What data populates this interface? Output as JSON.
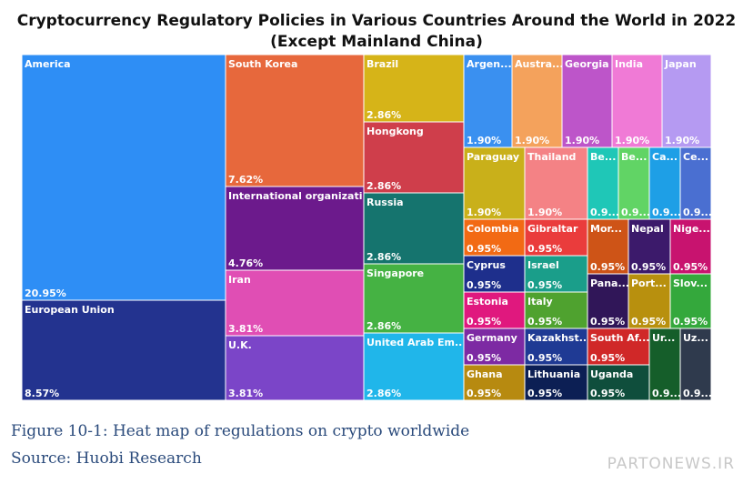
{
  "chart_data": {
    "type": "treemap",
    "title": "Cryptocurrency Regulatory Policies in Various Countries Around the World in 2022",
    "subtitle": "(Except Mainland China)",
    "items": [
      {
        "label": "America",
        "value_label": "20.95%",
        "value": 20.95,
        "color": "#2e8ef5"
      },
      {
        "label": "European Union",
        "value_label": "8.57%",
        "value": 8.57,
        "color": "#23338f"
      },
      {
        "label": "South Korea",
        "value_label": "7.62%",
        "value": 7.62,
        "color": "#e7683c"
      },
      {
        "label": "International organizati...",
        "value_label": "4.76%",
        "value": 4.76,
        "color": "#6c1a8c"
      },
      {
        "label": "Iran",
        "value_label": "3.81%",
        "value": 3.81,
        "color": "#e04eb4"
      },
      {
        "label": "U.K.",
        "value_label": "3.81%",
        "value": 3.81,
        "color": "#7b45c8"
      },
      {
        "label": "Brazil",
        "value_label": "2.86%",
        "value": 2.86,
        "color": "#d6b418"
      },
      {
        "label": "Hongkong",
        "value_label": "2.86%",
        "value": 2.86,
        "color": "#cf3e4b"
      },
      {
        "label": "Russia",
        "value_label": "2.86%",
        "value": 2.86,
        "color": "#15746e"
      },
      {
        "label": "Singapore",
        "value_label": "2.86%",
        "value": 2.86,
        "color": "#45b243"
      },
      {
        "label": "United Arab Em...",
        "value_label": "2.86%",
        "value": 2.86,
        "color": "#20b6ea"
      },
      {
        "label": "Argen...",
        "value_label": "1.90%",
        "value": 1.9,
        "color": "#3a90f0"
      },
      {
        "label": "Austra...",
        "value_label": "1.90%",
        "value": 1.9,
        "color": "#f4a25c"
      },
      {
        "label": "Georgia",
        "value_label": "1.90%",
        "value": 1.9,
        "color": "#bd55c9"
      },
      {
        "label": "India",
        "value_label": "1.90%",
        "value": 1.9,
        "color": "#f07ad6"
      },
      {
        "label": "Japan",
        "value_label": "1.90%",
        "value": 1.9,
        "color": "#b59af2"
      },
      {
        "label": "Paraguay",
        "value_label": "1.90%",
        "value": 1.9,
        "color": "#c9b01a"
      },
      {
        "label": "Thailand",
        "value_label": "1.90%",
        "value": 1.9,
        "color": "#f48285"
      },
      {
        "label": "Be...",
        "value_label": "0.9...",
        "value": 0.95,
        "color": "#1fc7b7"
      },
      {
        "label": "Be...",
        "value_label": "0.9...",
        "value": 0.95,
        "color": "#61d465"
      },
      {
        "label": "Ca...",
        "value_label": "0.9...",
        "value": 0.95,
        "color": "#1e9fe6"
      },
      {
        "label": "Ce...",
        "value_label": "0.9...",
        "value": 0.95,
        "color": "#4a6fd1"
      },
      {
        "label": "Colombia",
        "value_label": "0.95%",
        "value": 0.95,
        "color": "#f26a14"
      },
      {
        "label": "Gibraltar",
        "value_label": "0.95%",
        "value": 0.95,
        "color": "#ea3c3c"
      },
      {
        "label": "Mor...",
        "value_label": "0.95%",
        "value": 0.95,
        "color": "#ce5417"
      },
      {
        "label": "Nepal",
        "value_label": "0.95%",
        "value": 0.95,
        "color": "#3c1a6b"
      },
      {
        "label": "Nige...",
        "value_label": "0.95%",
        "value": 0.95,
        "color": "#c8136f"
      },
      {
        "label": "Cyprus",
        "value_label": "0.95%",
        "value": 0.95,
        "color": "#1e2f8c"
      },
      {
        "label": "Israel",
        "value_label": "0.95%",
        "value": 0.95,
        "color": "#1a9e8a"
      },
      {
        "label": "Pana...",
        "value_label": "0.95%",
        "value": 0.95,
        "color": "#301658"
      },
      {
        "label": "Port...",
        "value_label": "0.95%",
        "value": 0.95,
        "color": "#b8900e"
      },
      {
        "label": "Slov...",
        "value_label": "0.95%",
        "value": 0.95,
        "color": "#34a83c"
      },
      {
        "label": "Estonia",
        "value_label": "0.95%",
        "value": 0.95,
        "color": "#e0187e"
      },
      {
        "label": "Italy",
        "value_label": "0.95%",
        "value": 0.95,
        "color": "#4fa22f"
      },
      {
        "label": "Germany",
        "value_label": "0.95%",
        "value": 0.95,
        "color": "#7d2aa3"
      },
      {
        "label": "Kazakhst...",
        "value_label": "0.95%",
        "value": 0.95,
        "color": "#1f3a94"
      },
      {
        "label": "South Af...",
        "value_label": "0.95%",
        "value": 0.95,
        "color": "#d02828"
      },
      {
        "label": "Ur...",
        "value_label": "0.9...",
        "value": 0.95,
        "color": "#155e2a"
      },
      {
        "label": "Uz...",
        "value_label": "0.9...",
        "value": 0.95,
        "color": "#2f3a4d"
      },
      {
        "label": "Ghana",
        "value_label": "0.95%",
        "value": 0.95,
        "color": "#b78a10"
      },
      {
        "label": "Lithuania",
        "value_label": "0.95%",
        "value": 0.95,
        "color": "#0c1f54"
      },
      {
        "label": "Uganda",
        "value_label": "0.95%",
        "value": 0.95,
        "color": "#0f4e3c"
      }
    ]
  },
  "caption": {
    "figure": "Figure 10-1:  Heat map of regulations on crypto worldwide",
    "source": "Source: Huobi Research"
  },
  "watermark": "PARTONEWS.IR"
}
